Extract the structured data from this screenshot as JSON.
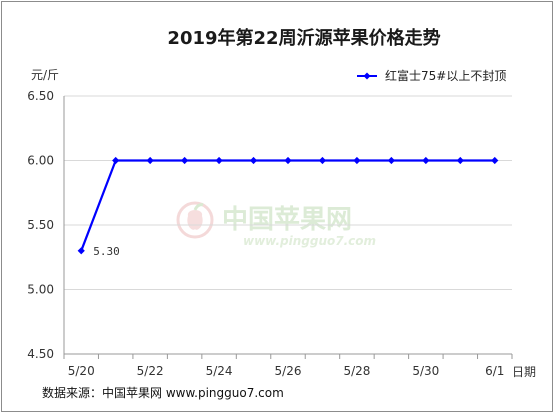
{
  "chart_data": {
    "type": "line",
    "title": "2019年第22周沂源苹果价格走势",
    "ylabel": "元/斤",
    "xlabel": "日期",
    "x": [
      "5/20",
      "5/21",
      "5/22",
      "5/23",
      "5/24",
      "5/25",
      "5/26",
      "5/27",
      "5/28",
      "5/29",
      "5/30",
      "5/31",
      "6/1"
    ],
    "x_tick_labels": [
      "5/20",
      "5/22",
      "5/24",
      "5/26",
      "5/28",
      "5/30",
      "6/1"
    ],
    "y_tick_labels": [
      "6.50",
      "6.00",
      "5.50",
      "5.00",
      "4.50"
    ],
    "ylim": [
      4.5,
      6.5
    ],
    "grid": "horizontal",
    "legend_position": "top-right",
    "series": [
      {
        "name": "红富士75#以上不封顶",
        "color": "#0000ff",
        "values": [
          5.3,
          6.0,
          6.0,
          6.0,
          6.0,
          6.0,
          6.0,
          6.0,
          6.0,
          6.0,
          6.0,
          6.0,
          6.0
        ]
      }
    ],
    "annotations": [
      {
        "point_index": 0,
        "text": "5.30"
      }
    ]
  },
  "footer": "数据来源：中国苹果网 www.pingguo7.com",
  "watermark": {
    "text": "中国苹果网",
    "url": "www.pingguo7.com",
    "icon": "apple-logo-icon"
  }
}
